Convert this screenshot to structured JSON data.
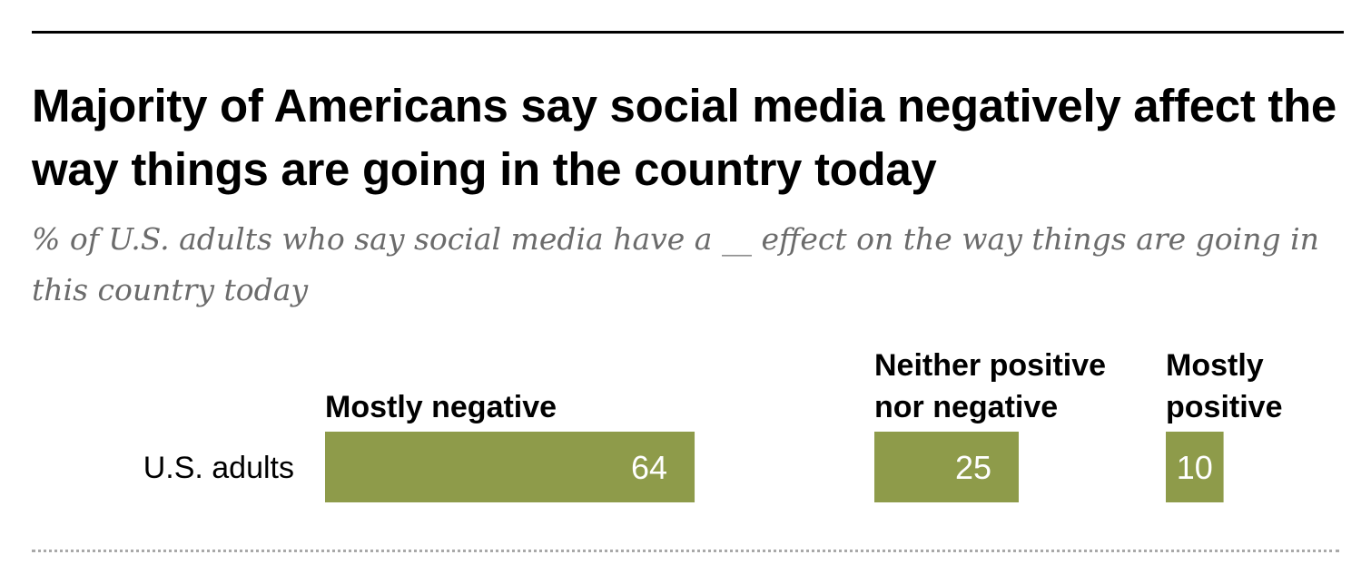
{
  "title": "Majority of Americans say social media negatively affect the way things are going in the country today",
  "subtitle": "% of U.S. adults who say social media have a __ effect on the way things are going in this country today",
  "colors": {
    "bar": "#8e9b4a",
    "bar_label": "#ffffff",
    "title": "#000000",
    "subtitle": "#6b6b6b"
  },
  "chart_data": {
    "type": "bar",
    "orientation": "horizontal",
    "categories": [
      "U.S. adults"
    ],
    "series": [
      {
        "name": "Mostly negative",
        "name_lines": [
          "Mostly negative"
        ],
        "values": [
          64
        ]
      },
      {
        "name": "Neither positive nor negative",
        "name_lines": [
          "Neither positive",
          "nor negative"
        ],
        "values": [
          25
        ]
      },
      {
        "name": "Mostly positive",
        "name_lines": [
          "Mostly",
          "positive"
        ],
        "values": [
          10
        ]
      }
    ],
    "xlim": [
      0,
      100
    ],
    "xlabel": "",
    "ylabel": "",
    "grid": false,
    "legend": "top"
  }
}
